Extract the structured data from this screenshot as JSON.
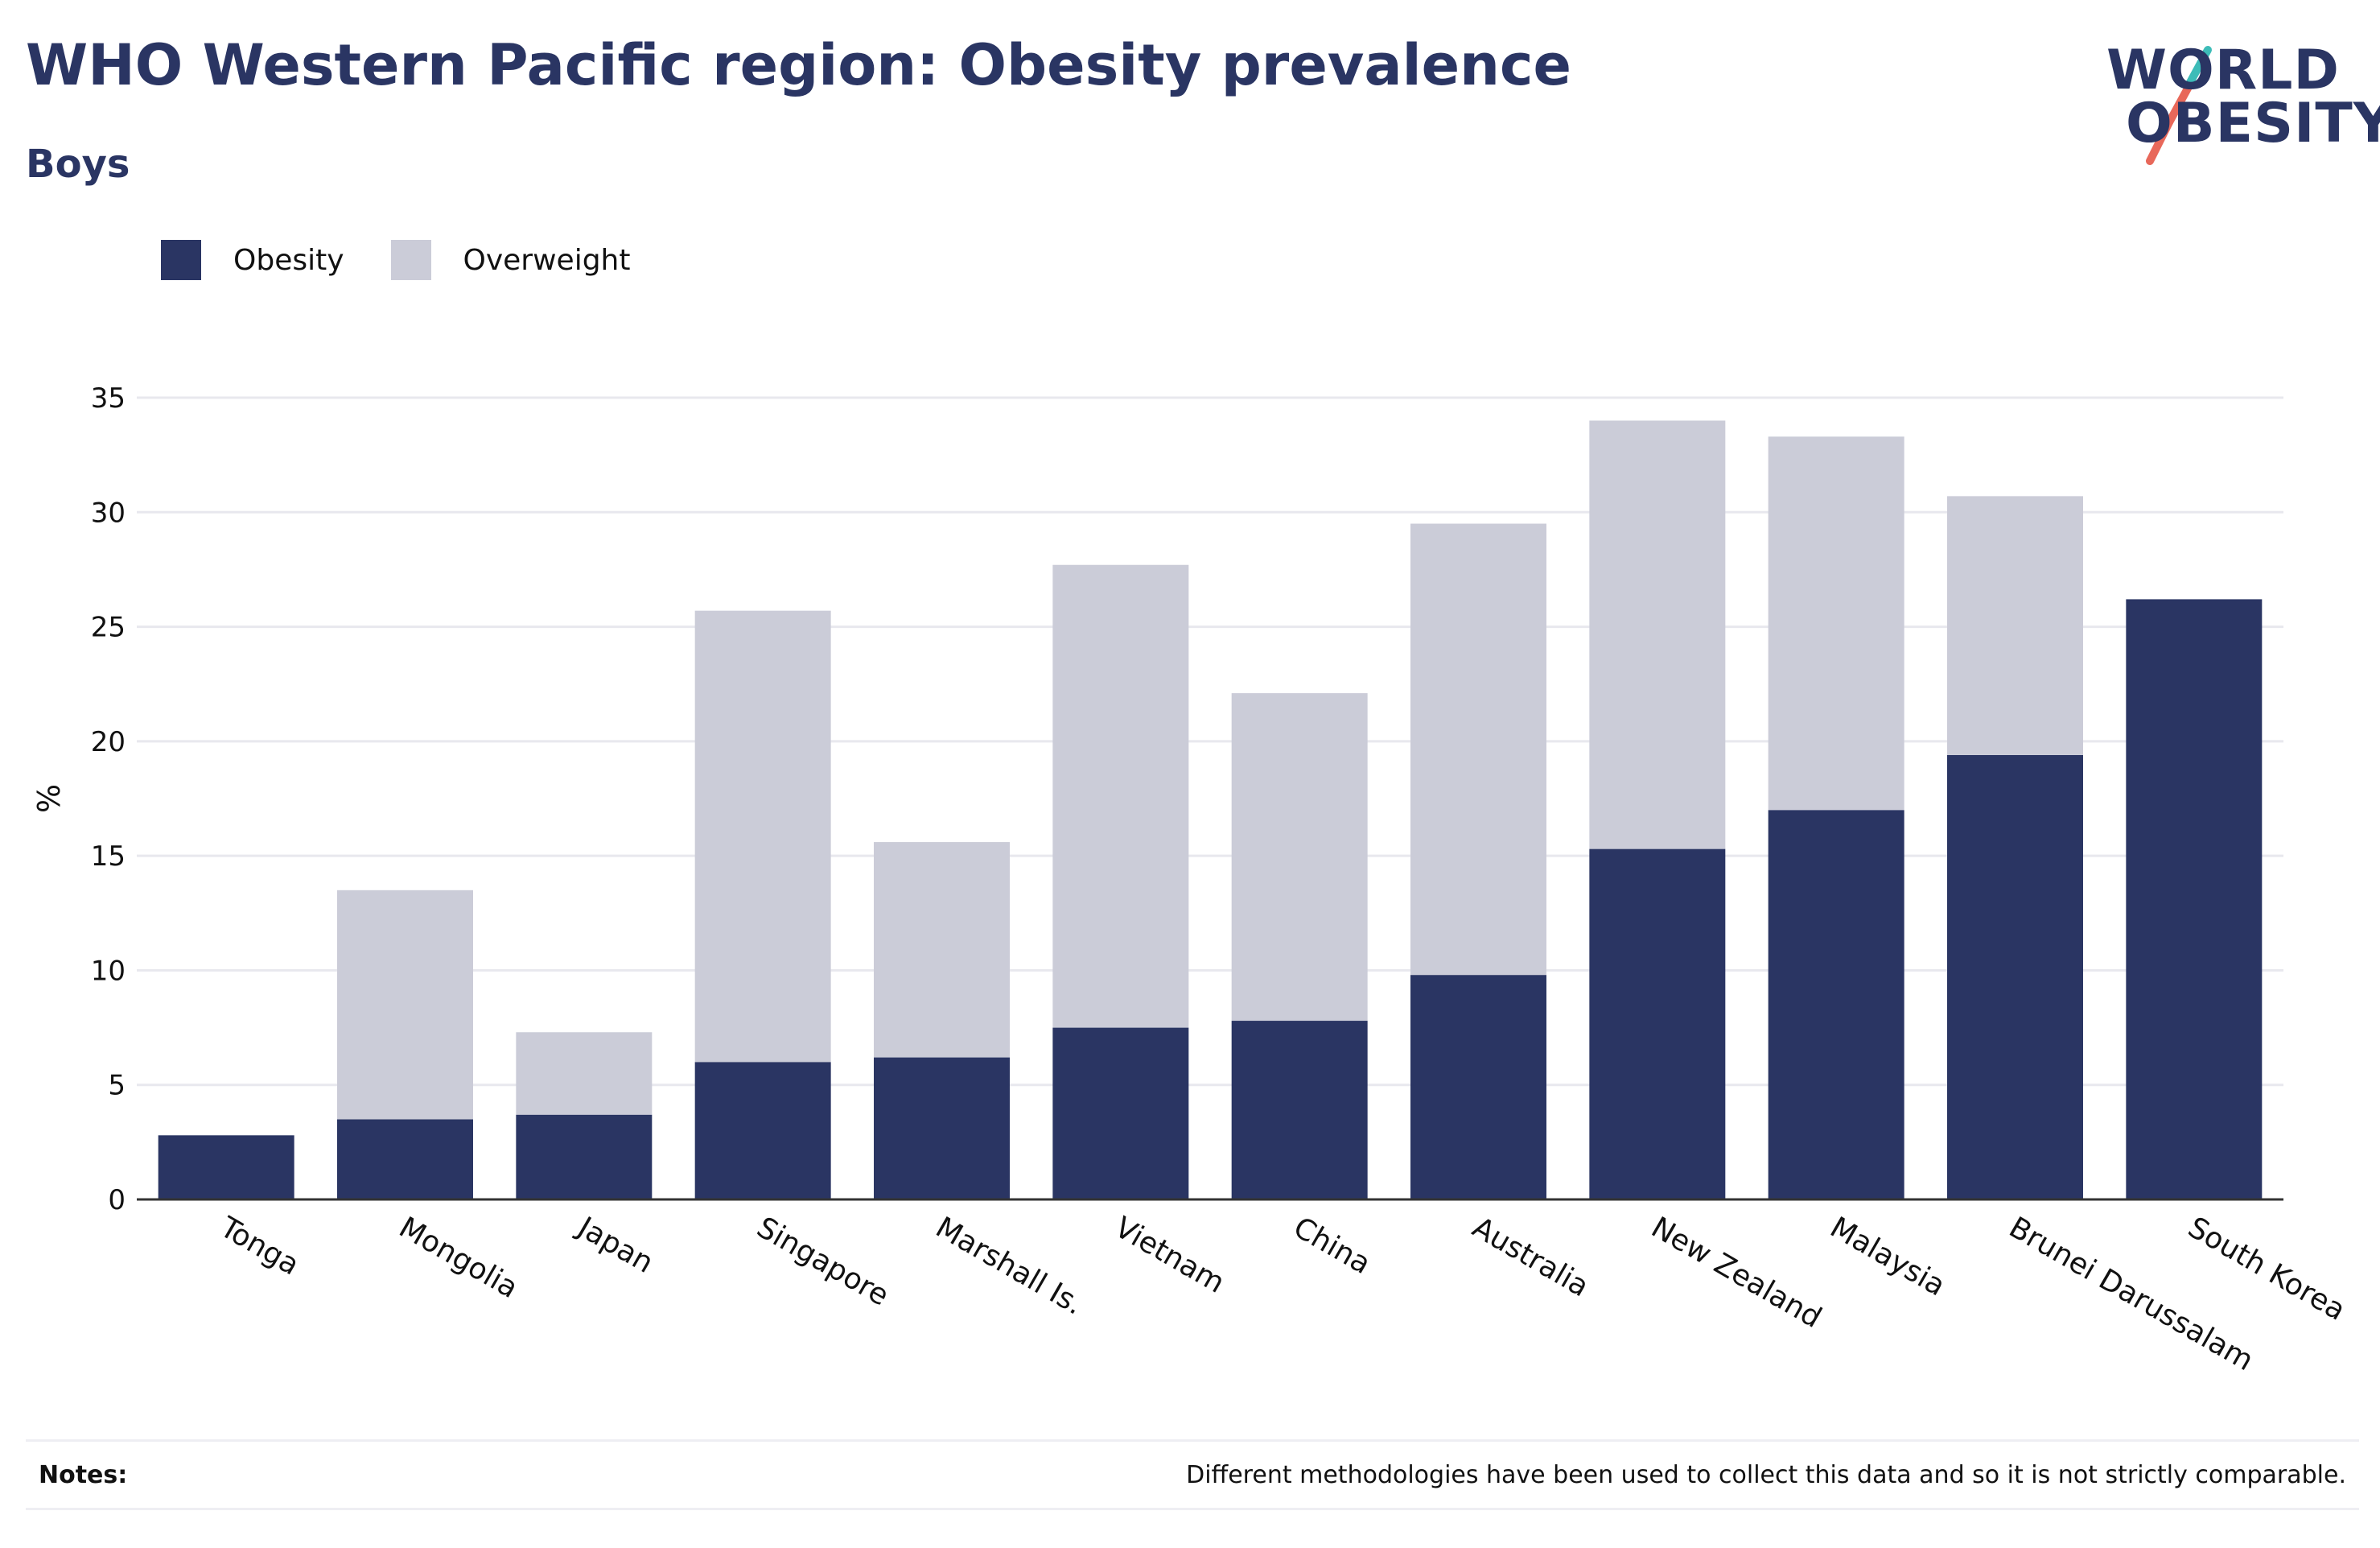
{
  "header": {
    "title": "WHO Western Pacific region: Obesity prevalence",
    "subtitle": "Boys"
  },
  "logo": {
    "line1": "WORLD",
    "line2": "OBESITY",
    "accent_colors": [
      "#3dbcb8",
      "#e8685a"
    ]
  },
  "legend": {
    "items": [
      {
        "label": "Obesity",
        "color": "#2a3563"
      },
      {
        "label": "Overweight",
        "color": "#cbccd8"
      }
    ]
  },
  "chart_data": {
    "type": "bar",
    "stacked": true,
    "categories": [
      "Tonga",
      "Mongolia",
      "Japan",
      "Singapore",
      "Marshall Is.",
      "Vietnam",
      "China",
      "Australia",
      "New Zealand",
      "Malaysia",
      "Brunei Darussalam",
      "South Korea"
    ],
    "series": [
      {
        "name": "Obesity",
        "color": "#2a3563",
        "values": [
          2.8,
          3.5,
          3.7,
          6.0,
          6.2,
          7.5,
          7.8,
          9.8,
          15.3,
          17.0,
          19.4,
          26.2
        ]
      },
      {
        "name": "Overweight",
        "color": "#cbccd8",
        "values": [
          0,
          10.0,
          3.6,
          19.7,
          9.4,
          20.2,
          14.3,
          19.7,
          18.7,
          16.3,
          11.3,
          0
        ]
      }
    ],
    "ylabel": "%",
    "ylim": [
      0,
      35
    ],
    "yticks": [
      0,
      5,
      10,
      15,
      20,
      25,
      30,
      35
    ],
    "grid": true,
    "legend_position": "top-left"
  },
  "footer": {
    "notes_label": "Notes:",
    "notes_text": "Different methodologies have been used to collect this data and so it is not strictly comparable."
  }
}
